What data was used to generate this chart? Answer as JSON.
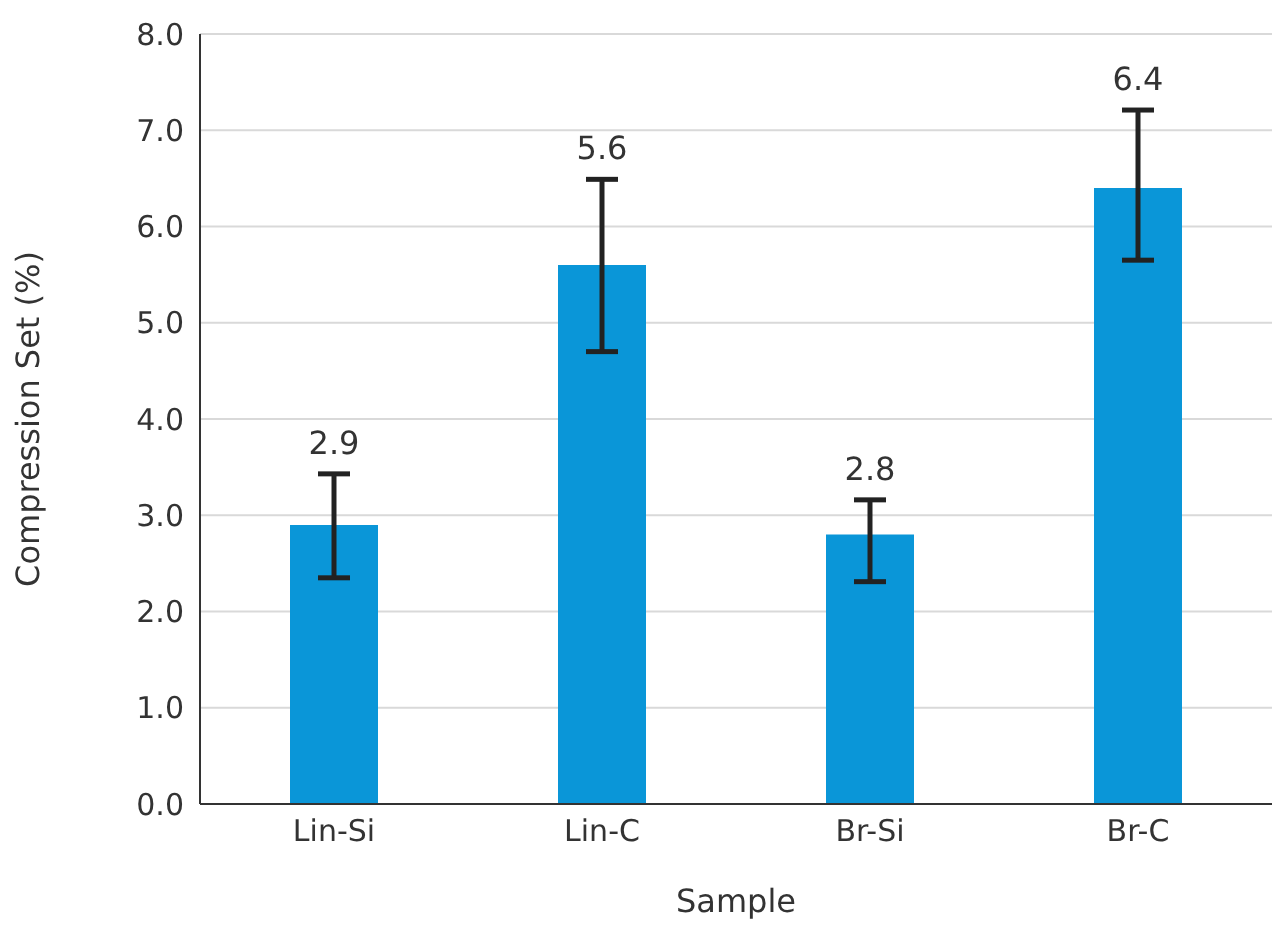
{
  "chart_data": {
    "type": "bar",
    "xlabel": "Sample",
    "ylabel": "Compression Set (%)",
    "categories": [
      "Lin-Si",
      "Lin-C",
      "Br-Si",
      "Br-C"
    ],
    "values": [
      2.9,
      5.6,
      2.8,
      6.4
    ],
    "errors": [
      [
        2.35,
        3.43
      ],
      [
        4.7,
        6.49
      ],
      [
        2.31,
        3.16
      ],
      [
        5.65,
        7.21
      ]
    ],
    "color": "#0a96d8",
    "data_labels": true,
    "grid": "y",
    "legend": false,
    "ylim": [
      0,
      8
    ],
    "yticks": [
      {
        "value": 0,
        "label": "0.0"
      },
      {
        "value": 1,
        "label": "1.0"
      },
      {
        "value": 2,
        "label": "2.0"
      },
      {
        "value": 3,
        "label": "3.0"
      },
      {
        "value": 4,
        "label": "4.0"
      },
      {
        "value": 5,
        "label": "5.0"
      },
      {
        "value": 6,
        "label": "6.0"
      },
      {
        "value": 7,
        "label": "7.0"
      },
      {
        "value": 8,
        "label": "8.0"
      }
    ]
  }
}
